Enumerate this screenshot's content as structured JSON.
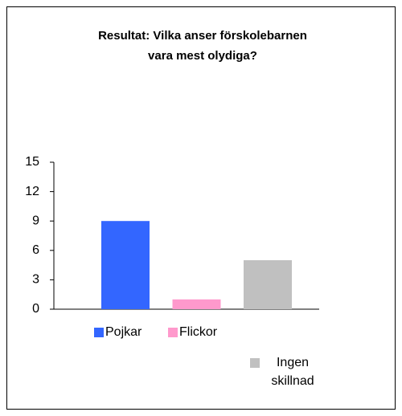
{
  "chart_data": {
    "type": "bar",
    "title": [
      "Resultat: Vilka anser förskolebarnen",
      "vara mest olydiga?"
    ],
    "categories": [
      "Pojkar",
      "Flickor",
      "Ingen skillnad"
    ],
    "values": [
      9,
      1,
      5
    ],
    "colors": [
      "#3366ff",
      "#ff99cc",
      "#c0c0c0"
    ],
    "ylim": [
      0,
      15
    ],
    "yticks": [
      0,
      3,
      6,
      9,
      12,
      15
    ],
    "grid": false
  }
}
